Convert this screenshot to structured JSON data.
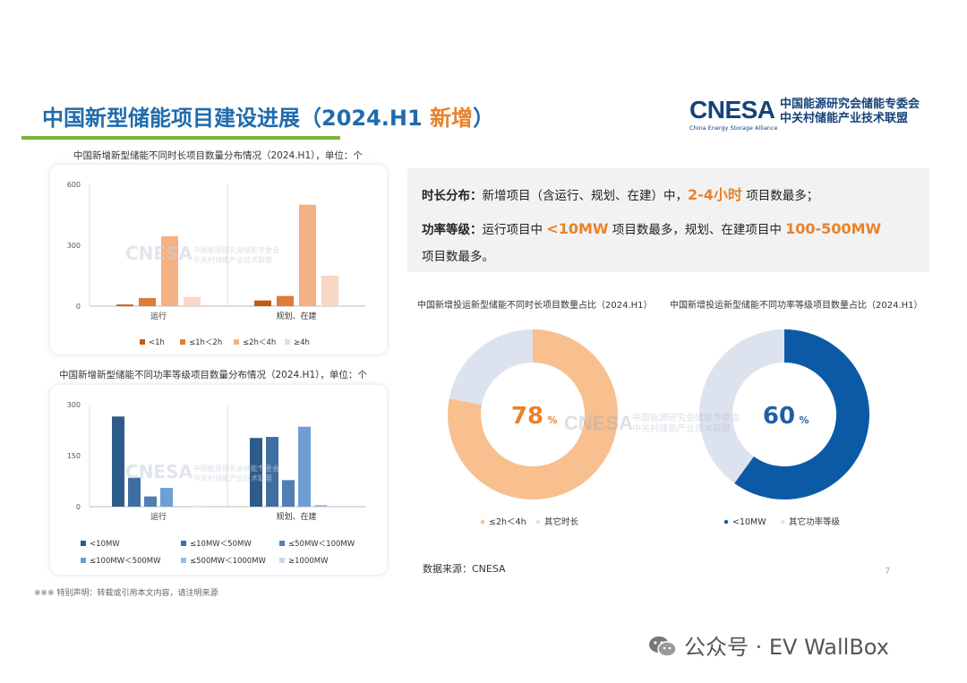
{
  "page": {
    "title_main": "中国新型储能项目建设进展（2024.H1 ",
    "title_highlight": "新增",
    "title_end": "）",
    "logo": {
      "word": "CNESA",
      "sub": "China Energy Storage Alliance",
      "cn_line1": "中国能源研究会储能专委会",
      "cn_line2": "中关村储能产业技术联盟"
    },
    "info": {
      "line1_label": "时长分布：",
      "line1_text": "新增项目（含运行、规划、在建）中，",
      "line1_highlight": "2-4小时",
      "line1_end": " 项目数最多；",
      "line2_label": "功率等级：",
      "line2_text": "运行项目中 ",
      "line2_highlight1": "<10MW",
      "line2_mid": " 项目数最多，规划、在建项目中 ",
      "line2_highlight2": "100-500MW",
      "line3_text": "项目数最多。"
    },
    "source": "数据来源：CNESA",
    "page_number": "7",
    "disclaimer": "※※※ 特别声明：转载或引用本文内容，请注明来源",
    "footer": "公众号 · EV WallBox",
    "watermark_word": "CNESA",
    "watermark_cn1": "中国能源研究会储能专委会",
    "watermark_cn2": "中关村储能产业技术联盟"
  },
  "chart_data": [
    {
      "type": "bar",
      "title": "中国新增新型储能不同时长项目数量分布情况（2024.H1），单位：个",
      "categories": [
        "运行",
        "规划、在建"
      ],
      "ylim": [
        0,
        600
      ],
      "yticks": [
        "0",
        "300",
        "600"
      ],
      "grid": false,
      "legend_position": "bottom",
      "series": [
        {
          "name": "<1h",
          "color": "#c55a11",
          "values": [
            8,
            28
          ]
        },
        {
          "name": "≤1h＜2h",
          "color": "#e07b39",
          "values": [
            40,
            50
          ]
        },
        {
          "name": "≤2h＜4h",
          "color": "#f4b183",
          "values": [
            345,
            500
          ]
        },
        {
          "name": "≥4h",
          "color": "#f8d7c4",
          "values": [
            45,
            150
          ]
        }
      ]
    },
    {
      "type": "bar",
      "title": "中国新增新型储能不同功率等级项目数量分布情况（2024.H1），单位：个",
      "categories": [
        "运行",
        "规划、在建"
      ],
      "ylim": [
        0,
        300
      ],
      "yticks": [
        "0",
        "150",
        "300"
      ],
      "grid": false,
      "legend_position": "bottom",
      "series": [
        {
          "name": "<10MW",
          "color": "#2e5c8a",
          "values": [
            265,
            202
          ]
        },
        {
          "name": "≤10MW＜50MW",
          "color": "#3f6fa2",
          "values": [
            85,
            205
          ]
        },
        {
          "name": "≤50MW＜100MW",
          "color": "#4f7fb5",
          "values": [
            30,
            78
          ]
        },
        {
          "name": "≤100MW＜500MW",
          "color": "#6f9fd2",
          "values": [
            55,
            235
          ]
        },
        {
          "name": "≤500MW＜1000MW",
          "color": "#9dbce0",
          "values": [
            0,
            5
          ]
        },
        {
          "name": "≥1000MW",
          "color": "#c8d8ec",
          "values": [
            0,
            2
          ]
        }
      ]
    },
    {
      "type": "pie",
      "title": "中国新增投运新型储能不同时长项目数量占比（2024.H1）",
      "center_label": "78",
      "center_unit": "%",
      "center_color": "#e8822a",
      "slices": [
        {
          "name": "≤2h＜4h",
          "value": 78,
          "color": "#f7c08e"
        },
        {
          "name": "其它时长",
          "value": 22,
          "color": "#dde3ee"
        }
      ]
    },
    {
      "type": "pie",
      "title": "中国新增投运新型储能不同功率等级项目数量占比（2024.H1）",
      "center_label": "60",
      "center_unit": "%",
      "center_color": "#1f5fa6",
      "slices": [
        {
          "name": "<10MW",
          "value": 60,
          "color": "#0c5aa6"
        },
        {
          "name": "其它功率等级",
          "value": 40,
          "color": "#dde3ee"
        }
      ]
    }
  ]
}
